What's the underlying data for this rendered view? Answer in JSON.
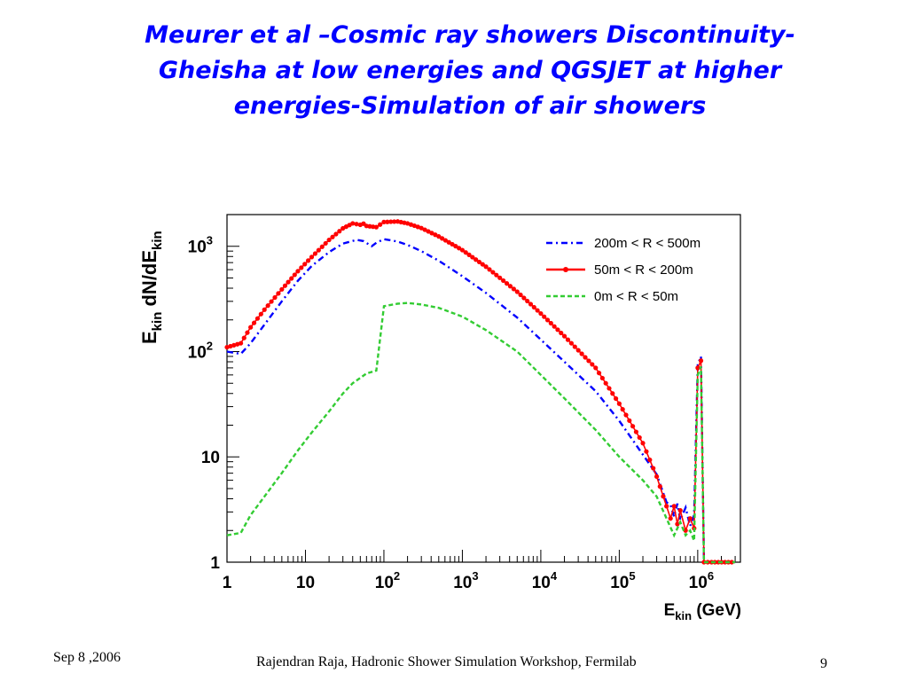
{
  "slide": {
    "title_lines": [
      "Meurer et al –Cosmic ray showers Discontinuity-",
      "Gheisha at low energies and QGSJET at higher",
      "energies-Simulation of air showers"
    ],
    "title_color": "#0000ff"
  },
  "footer": {
    "date": "Sep 8 ,2006",
    "credit": "Rajendran Raja,  Hadronic Shower Simulation Workshop, Fermilab",
    "page_number": "9"
  },
  "chart_data": {
    "type": "line",
    "x_scale": "log",
    "y_scale": "log",
    "xlim": [
      1,
      3500000
    ],
    "ylim": [
      1,
      2000
    ],
    "xlabel": {
      "main": "E",
      "sub": "kin",
      "rest": " (GeV)"
    },
    "ylabel": {
      "parts": [
        "E",
        "kin",
        " dN/dE",
        "kin"
      ]
    },
    "x_ticks": [
      {
        "base": "1",
        "exp": ""
      },
      {
        "base": "10",
        "exp": ""
      },
      {
        "base": "10",
        "exp": "2"
      },
      {
        "base": "10",
        "exp": "3"
      },
      {
        "base": "10",
        "exp": "4"
      },
      {
        "base": "10",
        "exp": "5"
      },
      {
        "base": "10",
        "exp": "6"
      }
    ],
    "y_ticks": [
      {
        "base": "1",
        "exp": ""
      },
      {
        "base": "10",
        "exp": ""
      },
      {
        "base": "10",
        "exp": "2"
      },
      {
        "base": "10",
        "exp": "3"
      }
    ],
    "legend_position": "top-right",
    "grid": false,
    "series": [
      {
        "name": "200m < R < 500m",
        "color": "#0000ff",
        "style": "dash-dot",
        "points": [
          [
            1,
            100
          ],
          [
            1.5,
            95
          ],
          [
            2,
            120
          ],
          [
            3,
            180
          ],
          [
            5,
            300
          ],
          [
            8,
            470
          ],
          [
            12,
            650
          ],
          [
            20,
            880
          ],
          [
            30,
            1060
          ],
          [
            45,
            1150
          ],
          [
            55,
            1120
          ],
          [
            70,
            1000
          ],
          [
            80,
            1080
          ],
          [
            100,
            1170
          ],
          [
            150,
            1110
          ],
          [
            200,
            1030
          ],
          [
            300,
            900
          ],
          [
            500,
            730
          ],
          [
            1000,
            520
          ],
          [
            2000,
            360
          ],
          [
            5000,
            210
          ],
          [
            10000,
            130
          ],
          [
            20000,
            80
          ],
          [
            50000,
            42
          ],
          [
            100000,
            22
          ],
          [
            200000,
            10.5
          ],
          [
            300000,
            6.8
          ],
          [
            400000,
            3.7
          ],
          [
            450000,
            3.5
          ],
          [
            500000,
            2.7
          ],
          [
            550000,
            3.6
          ],
          [
            600000,
            2.5
          ],
          [
            700000,
            3.3
          ],
          [
            800000,
            2.2
          ],
          [
            900000,
            2.8
          ],
          [
            1000000,
            75
          ],
          [
            1100000,
            90
          ],
          [
            1200000,
            1.0
          ],
          [
            1500000,
            1.0
          ],
          [
            3000000,
            1.0
          ]
        ]
      },
      {
        "name": "50m < R < 200m",
        "color": "#ff0000",
        "style": "line-dots",
        "points": [
          [
            1,
            110
          ],
          [
            1.5,
            120
          ],
          [
            2,
            170
          ],
          [
            3,
            250
          ],
          [
            5,
            390
          ],
          [
            8,
            580
          ],
          [
            12,
            790
          ],
          [
            20,
            1150
          ],
          [
            30,
            1480
          ],
          [
            40,
            1650
          ],
          [
            50,
            1600
          ],
          [
            55,
            1640
          ],
          [
            60,
            1560
          ],
          [
            80,
            1520
          ],
          [
            100,
            1700
          ],
          [
            150,
            1720
          ],
          [
            200,
            1650
          ],
          [
            300,
            1490
          ],
          [
            500,
            1240
          ],
          [
            1000,
            920
          ],
          [
            2000,
            640
          ],
          [
            5000,
            370
          ],
          [
            10000,
            230
          ],
          [
            20000,
            140
          ],
          [
            50000,
            70
          ],
          [
            100000,
            32
          ],
          [
            200000,
            13.5
          ],
          [
            300000,
            6.5
          ],
          [
            400000,
            3.4
          ],
          [
            450000,
            2.6
          ],
          [
            500000,
            3.4
          ],
          [
            550000,
            2.3
          ],
          [
            600000,
            3.1
          ],
          [
            700000,
            2.0
          ],
          [
            800000,
            2.6
          ],
          [
            900000,
            2.1
          ],
          [
            1000000,
            70
          ],
          [
            1100000,
            82
          ],
          [
            1200000,
            1.0
          ],
          [
            1500000,
            1.0
          ],
          [
            3000000,
            1.0
          ]
        ]
      },
      {
        "name": "0m < R <  50m",
        "color": "#33cc33",
        "style": "dashed",
        "points": [
          [
            1,
            1.8
          ],
          [
            1.5,
            1.9
          ],
          [
            2,
            2.8
          ],
          [
            3,
            4.2
          ],
          [
            5,
            7
          ],
          [
            8,
            11.5
          ],
          [
            12,
            17
          ],
          [
            20,
            27
          ],
          [
            30,
            40
          ],
          [
            40,
            50
          ],
          [
            60,
            62
          ],
          [
            80,
            66
          ],
          [
            100,
            270
          ],
          [
            150,
            285
          ],
          [
            200,
            290
          ],
          [
            300,
            280
          ],
          [
            500,
            260
          ],
          [
            1000,
            215
          ],
          [
            2000,
            160
          ],
          [
            5000,
            100
          ],
          [
            10000,
            60
          ],
          [
            20000,
            36
          ],
          [
            50000,
            18
          ],
          [
            100000,
            10
          ],
          [
            200000,
            6
          ],
          [
            300000,
            4.2
          ],
          [
            400000,
            2.6
          ],
          [
            500000,
            1.8
          ],
          [
            600000,
            2.4
          ],
          [
            700000,
            1.8
          ],
          [
            800000,
            2.0
          ],
          [
            900000,
            1.6
          ],
          [
            1000000,
            60
          ],
          [
            1100000,
            72
          ],
          [
            1200000,
            1.0
          ],
          [
            1500000,
            1.0
          ],
          [
            3000000,
            1.0
          ]
        ]
      }
    ]
  }
}
